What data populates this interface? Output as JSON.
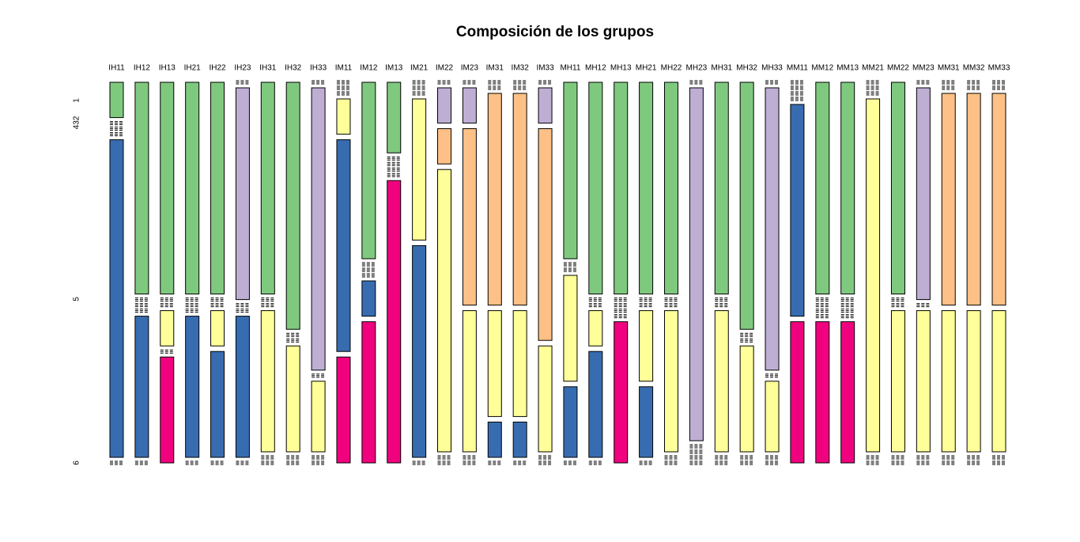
{
  "chart_data": {
    "type": "mosaic",
    "title": "Composición de los grupos",
    "categories": [
      "IH11",
      "IH12",
      "IH13",
      "IH21",
      "IH22",
      "IH23",
      "IH31",
      "IH32",
      "IH33",
      "IM11",
      "IM12",
      "IM13",
      "IM21",
      "IM22",
      "IM23",
      "IM31",
      "IM32",
      "IM33",
      "MH11",
      "MH12",
      "MH13",
      "MH21",
      "MH22",
      "MH23",
      "MH31",
      "MH32",
      "MH33",
      "MM11",
      "MM12",
      "MM13",
      "MM21",
      "MM22",
      "MM23",
      "MM31",
      "MM32",
      "MM33"
    ],
    "y_labels": [
      "1",
      "432",
      "5",
      "6"
    ],
    "series": [
      {
        "color": "#7fc97f",
        "values": [
          10,
          60,
          60,
          60,
          60,
          0,
          60,
          70,
          0,
          0,
          50,
          20,
          0,
          0,
          0,
          0,
          0,
          0,
          50,
          60,
          60,
          60,
          60,
          0,
          60,
          70,
          0,
          0,
          60,
          60,
          0,
          60,
          0,
          0,
          0,
          0
        ]
      },
      {
        "color": "#beaed4",
        "values": [
          0,
          0,
          0,
          0,
          0,
          60,
          0,
          0,
          80,
          0,
          0,
          0,
          0,
          10,
          10,
          0,
          0,
          10,
          0,
          0,
          0,
          0,
          0,
          100,
          0,
          0,
          80,
          0,
          0,
          0,
          0,
          0,
          60,
          0,
          0,
          0
        ]
      },
      {
        "color": "#fdc086",
        "values": [
          0,
          0,
          0,
          0,
          0,
          0,
          0,
          0,
          0,
          0,
          0,
          0,
          0,
          10,
          50,
          60,
          60,
          60,
          0,
          0,
          0,
          0,
          0,
          0,
          0,
          0,
          0,
          0,
          0,
          0,
          0,
          0,
          0,
          60,
          60,
          60
        ]
      },
      {
        "color": "#ffff99",
        "values": [
          0,
          0,
          10,
          0,
          10,
          0,
          40,
          30,
          20,
          10,
          0,
          0,
          40,
          80,
          40,
          30,
          30,
          30,
          30,
          10,
          0,
          20,
          40,
          0,
          40,
          30,
          20,
          0,
          0,
          0,
          100,
          40,
          40,
          40,
          40,
          40
        ]
      },
      {
        "color": "#386cb0",
        "values": [
          90,
          40,
          0,
          40,
          30,
          40,
          0,
          0,
          0,
          60,
          10,
          0,
          60,
          0,
          0,
          10,
          10,
          0,
          20,
          30,
          0,
          20,
          0,
          0,
          0,
          0,
          0,
          60,
          0,
          0,
          0,
          0,
          0,
          0,
          0,
          0
        ]
      },
      {
        "color": "#f0027f",
        "values": [
          0,
          0,
          30,
          0,
          0,
          0,
          0,
          0,
          0,
          30,
          40,
          80,
          0,
          0,
          0,
          0,
          0,
          0,
          0,
          0,
          40,
          0,
          0,
          0,
          0,
          0,
          0,
          40,
          40,
          40,
          0,
          0,
          0,
          0,
          0,
          0
        ]
      }
    ]
  }
}
